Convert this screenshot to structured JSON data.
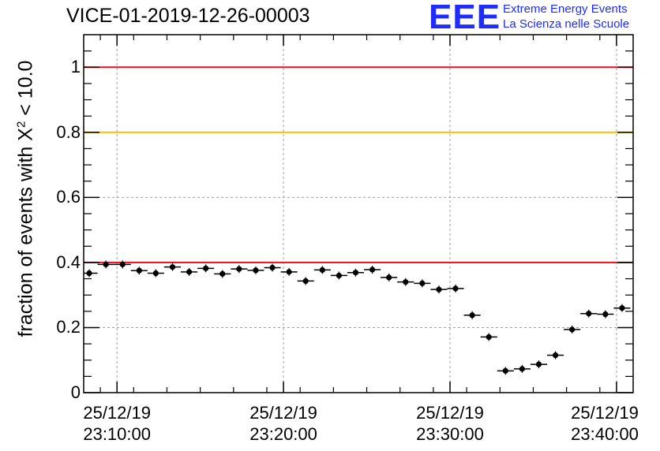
{
  "title": "VICE-01-2019-12-26-00003",
  "logo": {
    "mark": "EEE",
    "line1": "Extreme Energy Events",
    "line2": "La Scienza nelle Scuole",
    "color": "#1f2cff"
  },
  "ylabel": {
    "prefix": "fraction of events with X",
    "sup": "2",
    "suffix": " < 10.0"
  },
  "chart_data": {
    "type": "scatter",
    "x_unit": "time (HH:MM:SS, 25/12/19)",
    "xlim": [
      "23:08:00",
      "23:41:00"
    ],
    "ylim": [
      0,
      1.1
    ],
    "grid": true,
    "xticks": [
      {
        "date": "25/12/19",
        "time": "23:10:00"
      },
      {
        "date": "25/12/19",
        "time": "23:20:00"
      },
      {
        "date": "25/12/19",
        "time": "23:30:00"
      },
      {
        "date": "25/12/19",
        "time": "23:40:00"
      }
    ],
    "yticks": [
      "0",
      "0.2",
      "0.4",
      "0.6",
      "0.8",
      "1"
    ],
    "reference_lines": [
      {
        "y": 1.0,
        "color": "#e8101e"
      },
      {
        "y": 0.8,
        "color": "#ffc000"
      },
      {
        "y": 0.4,
        "color": "#e8101e"
      }
    ],
    "bin_width_seconds": 60,
    "points": [
      {
        "x": "23:08:20",
        "y": 0.367
      },
      {
        "x": "23:09:20",
        "y": 0.394
      },
      {
        "x": "23:10:20",
        "y": 0.394
      },
      {
        "x": "23:11:20",
        "y": 0.375
      },
      {
        "x": "23:12:20",
        "y": 0.367
      },
      {
        "x": "23:13:20",
        "y": 0.386
      },
      {
        "x": "23:14:20",
        "y": 0.371
      },
      {
        "x": "23:15:20",
        "y": 0.382
      },
      {
        "x": "23:16:20",
        "y": 0.365
      },
      {
        "x": "23:17:20",
        "y": 0.38
      },
      {
        "x": "23:18:20",
        "y": 0.376
      },
      {
        "x": "23:19:20",
        "y": 0.384
      },
      {
        "x": "23:20:20",
        "y": 0.371
      },
      {
        "x": "23:21:20",
        "y": 0.343
      },
      {
        "x": "23:22:20",
        "y": 0.377
      },
      {
        "x": "23:23:20",
        "y": 0.36
      },
      {
        "x": "23:24:20",
        "y": 0.369
      },
      {
        "x": "23:25:20",
        "y": 0.378
      },
      {
        "x": "23:26:20",
        "y": 0.354
      },
      {
        "x": "23:27:20",
        "y": 0.34
      },
      {
        "x": "23:28:20",
        "y": 0.336
      },
      {
        "x": "23:29:20",
        "y": 0.317
      },
      {
        "x": "23:30:20",
        "y": 0.32
      },
      {
        "x": "23:31:20",
        "y": 0.238
      },
      {
        "x": "23:32:20",
        "y": 0.171
      },
      {
        "x": "23:33:20",
        "y": 0.067
      },
      {
        "x": "23:34:20",
        "y": 0.073
      },
      {
        "x": "23:35:20",
        "y": 0.087
      },
      {
        "x": "23:36:20",
        "y": 0.115
      },
      {
        "x": "23:37:20",
        "y": 0.194
      },
      {
        "x": "23:38:20",
        "y": 0.243
      },
      {
        "x": "23:39:20",
        "y": 0.241
      },
      {
        "x": "23:40:20",
        "y": 0.26
      }
    ]
  }
}
